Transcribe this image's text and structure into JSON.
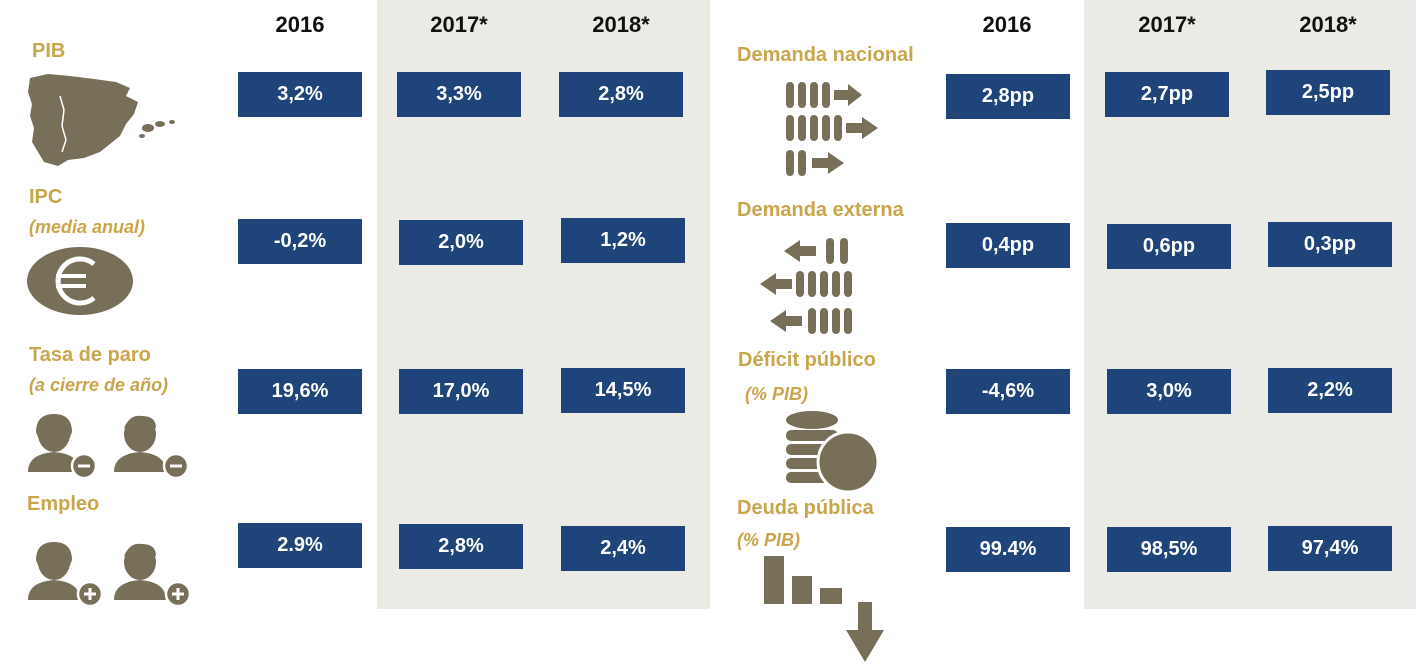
{
  "colors": {
    "label": "#C9A54B",
    "box": "#1F4479",
    "icon": "#776F57",
    "shade": "#ECEAE4"
  },
  "left": {
    "years": [
      "2016",
      "2017*",
      "2018*"
    ],
    "rows": [
      {
        "label": "PIB",
        "sub": "",
        "icon": "spain-map-icon",
        "values": [
          "3,2%",
          "3,3%",
          "2,8%"
        ]
      },
      {
        "label": "IPC",
        "sub": "(media anual)",
        "icon": "euro-coin-icon",
        "values": [
          "-0,2%",
          "2,0%",
          "1,2%"
        ]
      },
      {
        "label": "Tasa de paro",
        "sub": "(a cierre de año)",
        "icon": "people-minus-icon",
        "values": [
          "19,6%",
          "17,0%",
          "14,5%"
        ]
      },
      {
        "label": "Empleo",
        "sub": "",
        "icon": "people-plus-icon",
        "values": [
          "2.9%",
          "2,8%",
          "2,4%"
        ]
      }
    ]
  },
  "right": {
    "years": [
      "2016",
      "2017*",
      "2018*"
    ],
    "rows": [
      {
        "label": "Demanda nacional",
        "sub": "",
        "icon": "inward-demand-icon",
        "values": [
          "2,8pp",
          "2,7pp",
          "2,5pp"
        ]
      },
      {
        "label": "Demanda externa",
        "sub": "",
        "icon": "outward-demand-icon",
        "values": [
          "0,4pp",
          "0,6pp",
          "0,3pp"
        ]
      },
      {
        "label": "Déficit público",
        "sub": "(% PIB)",
        "icon": "coins-stack-icon",
        "values": [
          "-4,6%",
          "3,0%",
          "2,2%"
        ]
      },
      {
        "label": "Deuda pública",
        "sub": "(% PIB)",
        "icon": "declining-bars-icon",
        "values": [
          "99.4%",
          "98,5%",
          "97,4%"
        ]
      }
    ]
  }
}
